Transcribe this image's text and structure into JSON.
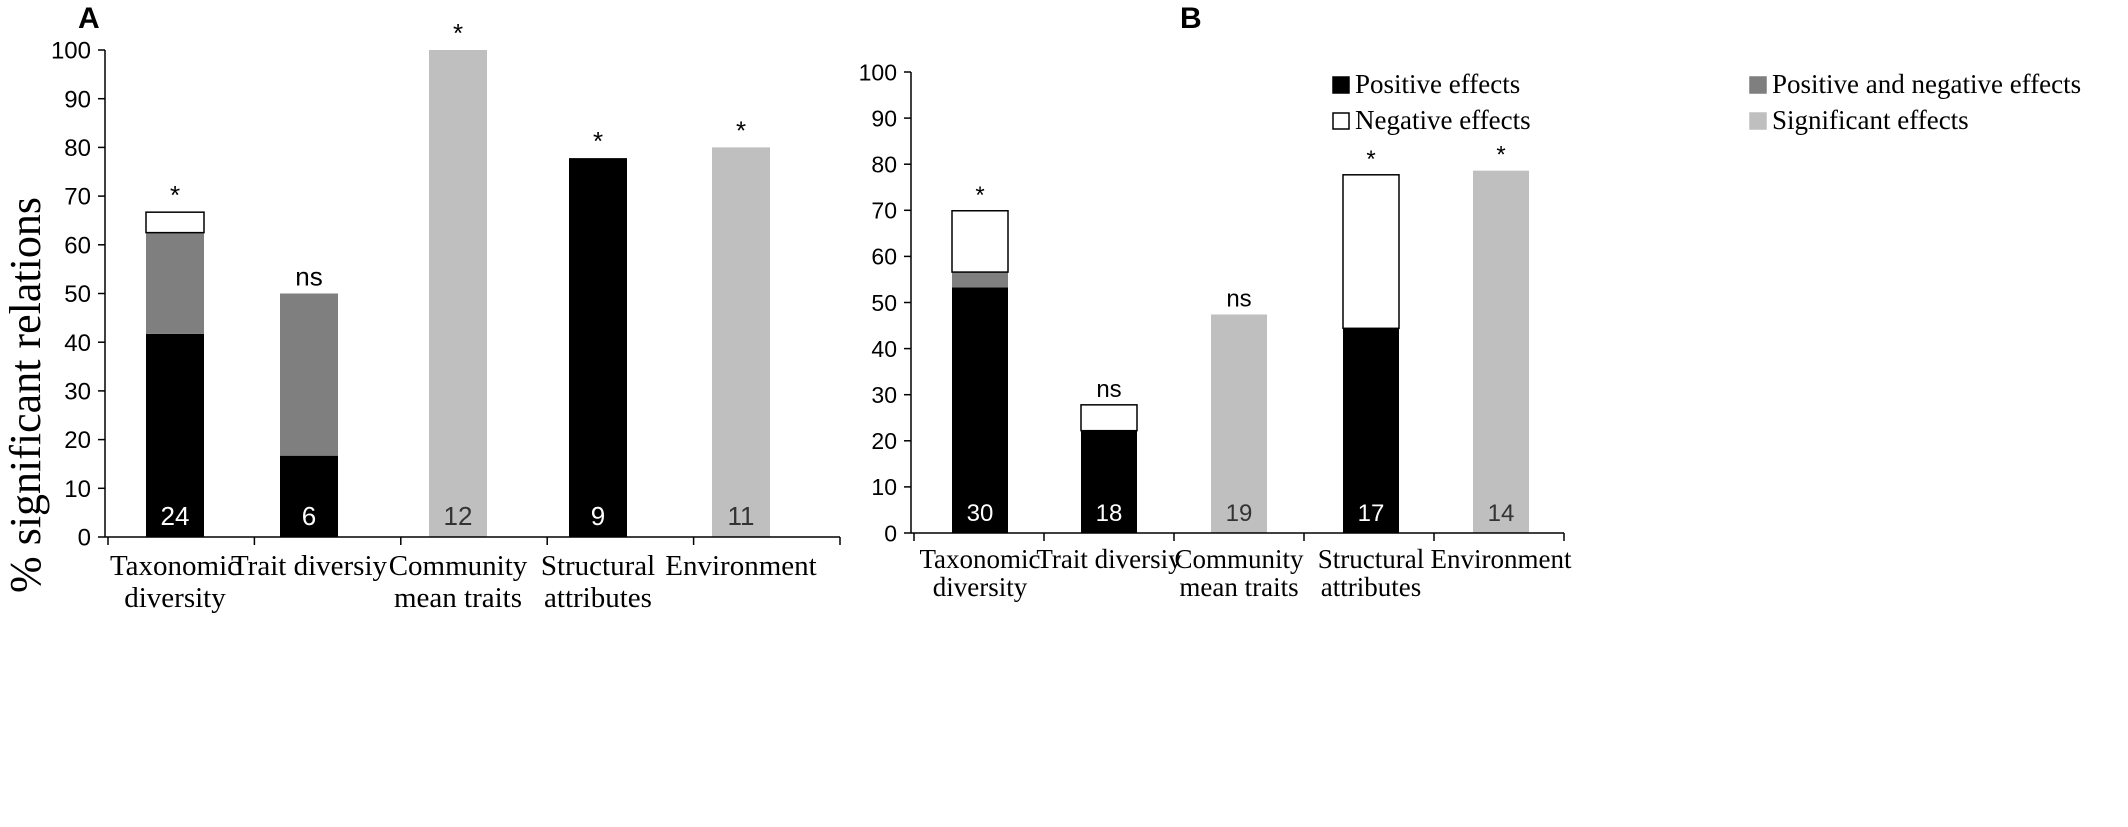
{
  "chart_data": [
    {
      "panel_label": "A",
      "type": "bar",
      "stacked": true,
      "ylabel": "% significant relations",
      "ylim": [
        0,
        100
      ],
      "yticks": [
        0,
        10,
        20,
        30,
        40,
        50,
        60,
        70,
        80,
        90,
        100
      ],
      "categories": [
        [
          "Taxonomic",
          "diversity"
        ],
        [
          "Trait diversiy"
        ],
        [
          "Community",
          "mean traits"
        ],
        [
          "Structural",
          "attributes"
        ],
        [
          "Environment"
        ]
      ],
      "series": [
        {
          "name": "Positive effects",
          "color": "#000000",
          "values": [
            41.7,
            16.7,
            0,
            77.8,
            0
          ]
        },
        {
          "name": "Positive and negative effects",
          "color": "#7f7f7f",
          "values": [
            20.8,
            33.3,
            0,
            0,
            0
          ]
        },
        {
          "name": "Negative effects",
          "color": "#ffffff",
          "values": [
            4.2,
            0,
            0,
            0,
            0
          ]
        },
        {
          "name": "Significant effects",
          "color": "#bfbfbf",
          "values": [
            0,
            0,
            100,
            0,
            80
          ]
        }
      ],
      "significance": [
        "*",
        "ns",
        "*",
        "*",
        "*"
      ],
      "counts": [
        "24",
        "6",
        "12",
        "9",
        "11"
      ],
      "count_label_colors": [
        "#ffffff",
        "#ffffff",
        "#333333",
        "#ffffff",
        "#333333"
      ],
      "legend": false
    },
    {
      "panel_label": "B",
      "type": "bar",
      "stacked": true,
      "ylabel": "",
      "ylim": [
        0,
        100
      ],
      "yticks": [
        0,
        10,
        20,
        30,
        40,
        50,
        60,
        70,
        80,
        90,
        100
      ],
      "categories": [
        [
          "Taxonomic",
          "diversity"
        ],
        [
          "Trait diversiy"
        ],
        [
          "Community",
          "mean traits"
        ],
        [
          "Structural",
          "attributes"
        ],
        [
          "Environment"
        ]
      ],
      "series": [
        {
          "name": "Positive effects",
          "color": "#000000",
          "values": [
            53.3,
            22.2,
            0,
            44.4,
            0
          ]
        },
        {
          "name": "Positive and negative effects",
          "color": "#7f7f7f",
          "values": [
            3.3,
            0,
            0,
            0,
            0
          ]
        },
        {
          "name": "Negative effects",
          "color": "#ffffff",
          "values": [
            13.3,
            5.6,
            0,
            33.3,
            0
          ]
        },
        {
          "name": "Significant effects",
          "color": "#bfbfbf",
          "values": [
            0,
            0,
            47.4,
            0,
            78.6
          ]
        }
      ],
      "significance": [
        "*",
        "ns",
        "ns",
        "*",
        "*"
      ],
      "counts": [
        "30",
        "18",
        "19",
        "17",
        "14"
      ],
      "count_label_colors": [
        "#ffffff",
        "#ffffff",
        "#333333",
        "#ffffff",
        "#333333"
      ],
      "legend": true,
      "legend_placement": "top"
    }
  ]
}
